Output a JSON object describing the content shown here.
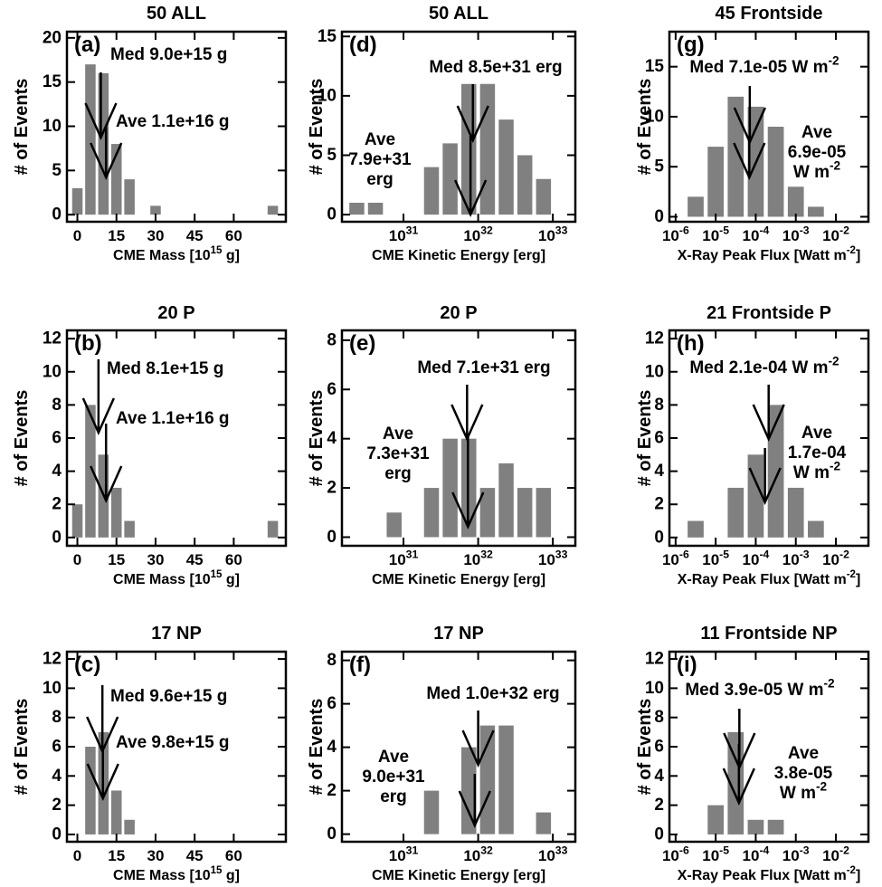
{
  "chart_data": [
    {
      "type": "histogram",
      "title": "50 ALL",
      "panel_label": "(a)",
      "ylabel": "# of Events",
      "xlabel": [
        {
          "text": "CME Mass [10"
        },
        {
          "text": "15",
          "sup": true
        },
        {
          "text": " g]"
        }
      ],
      "bins": [
        -2.5,
        2.5,
        7.5,
        12.5,
        17.5,
        22.5,
        27.5,
        32.5,
        37.5,
        42.5,
        47.5,
        52.5,
        57.5,
        62.5,
        67.5,
        72.5,
        77.5
      ],
      "values": [
        3,
        17,
        16,
        8,
        4,
        0,
        1,
        0,
        0,
        0,
        0,
        0,
        0,
        0,
        0,
        1
      ],
      "color": "#808080",
      "log_x": false,
      "xlim": [
        -4,
        80
      ],
      "xticks": [
        0,
        15,
        30,
        45,
        60
      ],
      "ylim": [
        -0.8,
        20.7
      ],
      "yticks": [
        0,
        5,
        10,
        15,
        20
      ],
      "annotations": [
        {
          "x": 9.0,
          "lines": [
            [
              {
                "text": "Med 9.0e+15 g"
              }
            ]
          ]
        },
        {
          "x": 11,
          "lines": [
            [
              {
                "text": "Ave 1.1e+16 g"
              }
            ]
          ]
        }
      ]
    },
    {
      "type": "histogram",
      "title": "20 P",
      "panel_label": "(b)",
      "ylabel": "# of Events",
      "xlabel": [
        {
          "text": "CME Mass [10"
        },
        {
          "text": "15",
          "sup": true
        },
        {
          "text": " g]"
        }
      ],
      "bins": [
        -2.5,
        2.5,
        7.5,
        12.5,
        17.5,
        22.5,
        27.5,
        32.5,
        37.5,
        42.5,
        47.5,
        52.5,
        57.5,
        62.5,
        67.5,
        72.5,
        77.5
      ],
      "values": [
        2,
        8,
        5,
        3,
        1,
        0,
        0,
        0,
        0,
        0,
        0,
        0,
        0,
        0,
        0,
        1
      ],
      "color": "#808080",
      "log_x": false,
      "xlim": [
        -4,
        80
      ],
      "xticks": [
        0,
        15,
        30,
        45,
        60
      ],
      "ylim": [
        -0.5,
        12.5
      ],
      "yticks": [
        0,
        2,
        4,
        6,
        8,
        10,
        12
      ],
      "annotations": [
        {
          "x": 8.1,
          "lines": [
            [
              {
                "text": "Med 8.1e+15 g"
              }
            ]
          ]
        },
        {
          "x": 11,
          "lines": [
            [
              {
                "text": "Ave 1.1e+16 g"
              }
            ]
          ]
        }
      ]
    },
    {
      "type": "histogram",
      "title": "17 NP",
      "panel_label": "(c)",
      "ylabel": "# of Events",
      "xlabel": [
        {
          "text": "CME Mass [10"
        },
        {
          "text": "15",
          "sup": true
        },
        {
          "text": " g]"
        }
      ],
      "bins": [
        -2.5,
        2.5,
        7.5,
        12.5,
        17.5,
        22.5,
        27.5,
        32.5,
        37.5,
        42.5,
        47.5,
        52.5,
        57.5,
        62.5,
        67.5,
        72.5,
        77.5
      ],
      "values": [
        0,
        6,
        7,
        3,
        1,
        0,
        0,
        0,
        0,
        0,
        0,
        0,
        0,
        0,
        0,
        0
      ],
      "color": "#808080",
      "log_x": false,
      "xlim": [
        -4,
        80
      ],
      "xticks": [
        0,
        15,
        30,
        45,
        60
      ],
      "ylim": [
        -0.5,
        12.5
      ],
      "yticks": [
        0,
        2,
        4,
        6,
        8,
        10,
        12
      ],
      "annotations": [
        {
          "x": 9.6,
          "lines": [
            [
              {
                "text": "Med 9.6e+15 g"
              }
            ]
          ]
        },
        {
          "x": 9.8,
          "lines": [
            [
              {
                "text": "Ave 9.8e+15 g"
              }
            ]
          ]
        }
      ]
    },
    {
      "type": "histogram",
      "title": "50 ALL",
      "panel_label": "(d)",
      "ylabel": "# of Events",
      "xlabel": [
        {
          "text": "CME Kinetic Energy [erg]"
        }
      ],
      "bins": [
        1.778e+30,
        3.162e+30,
        5.623e+30,
        1e+31,
        1.778e+31,
        3.162e+31,
        5.623e+31,
        1e+32,
        1.778e+32,
        3.162e+32,
        5.623e+32,
        1e+33
      ],
      "values": [
        1,
        1,
        0,
        0,
        4,
        6,
        11,
        11,
        8,
        5,
        3
      ],
      "color": "#808080",
      "log_x": true,
      "xlim": [
        1.5e+30,
        2e+33
      ],
      "xticks": [
        {
          "value": 1e+31,
          "label": [
            {
              "text": "10"
            },
            {
              "text": "31",
              "sup": true
            }
          ]
        },
        {
          "value": 1e+32,
          "label": [
            {
              "text": "10"
            },
            {
              "text": "32",
              "sup": true
            }
          ]
        },
        {
          "value": 1e+33,
          "label": [
            {
              "text": "10"
            },
            {
              "text": "33",
              "sup": true
            }
          ]
        }
      ],
      "ylim": [
        -0.6,
        15.4
      ],
      "yticks": [
        0,
        5,
        10,
        15
      ],
      "annotations": [
        {
          "x": 8.5e+31,
          "lines": [
            [
              {
                "text": "Med 8.5e+31 erg"
              }
            ]
          ]
        },
        {
          "x": 7.9e+31,
          "lines": [
            [
              {
                "text": "Ave"
              }
            ],
            [
              {
                "text": "7.9e+31"
              }
            ],
            [
              {
                "text": "erg"
              }
            ]
          ]
        }
      ]
    },
    {
      "type": "histogram",
      "title": "20 P",
      "panel_label": "(e)",
      "ylabel": "# of Events",
      "xlabel": [
        {
          "text": "CME Kinetic Energy [erg]"
        }
      ],
      "bins": [
        1.778e+30,
        3.162e+30,
        5.623e+30,
        1e+31,
        1.778e+31,
        3.162e+31,
        5.623e+31,
        1e+32,
        1.778e+32,
        3.162e+32,
        5.623e+32,
        1e+33
      ],
      "values": [
        0,
        0,
        1,
        0,
        2,
        4,
        4,
        2,
        3,
        2,
        2
      ],
      "color": "#808080",
      "log_x": true,
      "xlim": [
        1.5e+30,
        2e+33
      ],
      "xticks": [
        {
          "value": 1e+31,
          "label": [
            {
              "text": "10"
            },
            {
              "text": "31",
              "sup": true
            }
          ]
        },
        {
          "value": 1e+32,
          "label": [
            {
              "text": "10"
            },
            {
              "text": "32",
              "sup": true
            }
          ]
        },
        {
          "value": 1e+33,
          "label": [
            {
              "text": "10"
            },
            {
              "text": "33",
              "sup": true
            }
          ]
        }
      ],
      "ylim": [
        -0.35,
        8.4
      ],
      "yticks": [
        0,
        2,
        4,
        6,
        8
      ],
      "annotations": [
        {
          "x": 7.1e+31,
          "lines": [
            [
              {
                "text": "Med 7.1e+31 erg"
              }
            ]
          ]
        },
        {
          "x": 7.3e+31,
          "lines": [
            [
              {
                "text": "Ave"
              }
            ],
            [
              {
                "text": "7.3e+31"
              }
            ],
            [
              {
                "text": "erg"
              }
            ]
          ]
        }
      ]
    },
    {
      "type": "histogram",
      "title": "17 NP",
      "panel_label": "(f)",
      "ylabel": "# of Events",
      "xlabel": [
        {
          "text": "CME Kinetic Energy [erg]"
        }
      ],
      "bins": [
        1.778e+30,
        3.162e+30,
        5.623e+30,
        1e+31,
        1.778e+31,
        3.162e+31,
        5.623e+31,
        1e+32,
        1.778e+32,
        3.162e+32,
        5.623e+32,
        1e+33
      ],
      "values": [
        0,
        0,
        0,
        0,
        2,
        0,
        4,
        5,
        5,
        0,
        1
      ],
      "color": "#808080",
      "log_x": true,
      "xlim": [
        1.5e+30,
        2e+33
      ],
      "xticks": [
        {
          "value": 1e+31,
          "label": [
            {
              "text": "10"
            },
            {
              "text": "31",
              "sup": true
            }
          ]
        },
        {
          "value": 1e+32,
          "label": [
            {
              "text": "10"
            },
            {
              "text": "32",
              "sup": true
            }
          ]
        },
        {
          "value": 1e+33,
          "label": [
            {
              "text": "10"
            },
            {
              "text": "33",
              "sup": true
            }
          ]
        }
      ],
      "ylim": [
        -0.35,
        8.4
      ],
      "yticks": [
        0,
        2,
        4,
        6,
        8
      ],
      "annotations": [
        {
          "x": 1e+32,
          "lines": [
            [
              {
                "text": "Med 1.0e+32 erg"
              }
            ]
          ]
        },
        {
          "x": 9e+31,
          "lines": [
            [
              {
                "text": "Ave"
              }
            ],
            [
              {
                "text": "9.0e+31"
              }
            ],
            [
              {
                "text": "erg"
              }
            ]
          ]
        }
      ]
    },
    {
      "type": "histogram",
      "title": "45 Frontside",
      "panel_label": "(g)",
      "ylabel": "# of Events",
      "xlabel": [
        {
          "text": "X-Ray Peak Flux [Watt m"
        },
        {
          "text": "-2",
          "sup": true
        },
        {
          "text": "]"
        }
      ],
      "bins": [
        1.778e-06,
        5.623e-06,
        1.778e-05,
        5.623e-05,
        0.0001778,
        0.0005623,
        0.001778,
        0.005623
      ],
      "values": [
        2,
        7,
        12,
        11,
        9,
        3,
        1
      ],
      "color": "#808080",
      "log_x": true,
      "xlim": [
        7e-07,
        0.065
      ],
      "xticks": [
        {
          "value": 1e-06,
          "label": [
            {
              "text": "10"
            },
            {
              "text": "-6",
              "sup": true
            }
          ]
        },
        {
          "value": 1e-05,
          "label": [
            {
              "text": "10"
            },
            {
              "text": "-5",
              "sup": true
            }
          ]
        },
        {
          "value": 0.0001,
          "label": [
            {
              "text": "10"
            },
            {
              "text": "-4",
              "sup": true
            }
          ]
        },
        {
          "value": 0.001,
          "label": [
            {
              "text": "10"
            },
            {
              "text": "-3",
              "sup": true
            }
          ]
        },
        {
          "value": 0.01,
          "label": [
            {
              "text": "10"
            },
            {
              "text": "-2",
              "sup": true
            }
          ]
        }
      ],
      "ylim": [
        -0.5,
        18.5
      ],
      "yticks": [
        0,
        5,
        10,
        15
      ],
      "annotations": [
        {
          "x": 7.1e-05,
          "lines": [
            [
              {
                "text": "Med 7.1e-05 W m"
              },
              {
                "text": "-2",
                "sup": true
              }
            ]
          ]
        },
        {
          "x": 6.9e-05,
          "lines": [
            [
              {
                "text": "Ave"
              }
            ],
            [
              {
                "text": "6.9e-05"
              }
            ],
            [
              {
                "text": "W m"
              },
              {
                "text": "-2",
                "sup": true
              }
            ]
          ]
        }
      ]
    },
    {
      "type": "histogram",
      "title": "21 Frontside P",
      "panel_label": "(h)",
      "ylabel": "# of Events",
      "xlabel": [
        {
          "text": "X-Ray Peak Flux [Watt m"
        },
        {
          "text": "-2",
          "sup": true
        },
        {
          "text": "]"
        }
      ],
      "bins": [
        1.778e-06,
        5.623e-06,
        1.778e-05,
        5.623e-05,
        0.0001778,
        0.0005623,
        0.001778,
        0.005623
      ],
      "values": [
        1,
        0,
        3,
        5,
        8,
        3,
        1
      ],
      "color": "#808080",
      "log_x": true,
      "xlim": [
        7e-07,
        0.065
      ],
      "xticks": [
        {
          "value": 1e-06,
          "label": [
            {
              "text": "10"
            },
            {
              "text": "-6",
              "sup": true
            }
          ]
        },
        {
          "value": 1e-05,
          "label": [
            {
              "text": "10"
            },
            {
              "text": "-5",
              "sup": true
            }
          ]
        },
        {
          "value": 0.0001,
          "label": [
            {
              "text": "10"
            },
            {
              "text": "-4",
              "sup": true
            }
          ]
        },
        {
          "value": 0.001,
          "label": [
            {
              "text": "10"
            },
            {
              "text": "-3",
              "sup": true
            }
          ]
        },
        {
          "value": 0.01,
          "label": [
            {
              "text": "10"
            },
            {
              "text": "-2",
              "sup": true
            }
          ]
        }
      ],
      "ylim": [
        -0.5,
        12.5
      ],
      "yticks": [
        0,
        2,
        4,
        6,
        8,
        10,
        12
      ],
      "annotations": [
        {
          "x": 0.00021,
          "lines": [
            [
              {
                "text": "Med 2.1e-04 W m"
              },
              {
                "text": "-2",
                "sup": true
              }
            ]
          ]
        },
        {
          "x": 0.00017,
          "lines": [
            [
              {
                "text": "Ave"
              }
            ],
            [
              {
                "text": "1.7e-04"
              }
            ],
            [
              {
                "text": "W m"
              },
              {
                "text": "-2",
                "sup": true
              }
            ]
          ]
        }
      ]
    },
    {
      "type": "histogram",
      "title": "11 Frontside NP",
      "panel_label": "(i)",
      "ylabel": "# of Events",
      "xlabel": [
        {
          "text": "X-Ray Peak Flux [Watt m"
        },
        {
          "text": "-2",
          "sup": true
        },
        {
          "text": "]"
        }
      ],
      "bins": [
        1.778e-06,
        5.623e-06,
        1.778e-05,
        5.623e-05,
        0.0001778,
        0.0005623,
        0.001778,
        0.005623
      ],
      "values": [
        0,
        2,
        7,
        1,
        1,
        0,
        0
      ],
      "color": "#808080",
      "log_x": true,
      "xlim": [
        7e-07,
        0.065
      ],
      "xticks": [
        {
          "value": 1e-06,
          "label": [
            {
              "text": "10"
            },
            {
              "text": "-6",
              "sup": true
            }
          ]
        },
        {
          "value": 1e-05,
          "label": [
            {
              "text": "10"
            },
            {
              "text": "-5",
              "sup": true
            }
          ]
        },
        {
          "value": 0.0001,
          "label": [
            {
              "text": "10"
            },
            {
              "text": "-4",
              "sup": true
            }
          ]
        },
        {
          "value": 0.001,
          "label": [
            {
              "text": "10"
            },
            {
              "text": "-3",
              "sup": true
            }
          ]
        },
        {
          "value": 0.01,
          "label": [
            {
              "text": "10"
            },
            {
              "text": "-2",
              "sup": true
            }
          ]
        }
      ],
      "ylim": [
        -0.5,
        12.5
      ],
      "yticks": [
        0,
        2,
        4,
        6,
        8,
        10,
        12
      ],
      "annotations": [
        {
          "x": 3.9e-05,
          "lines": [
            [
              {
                "text": "Med 3.9e-05 W m"
              },
              {
                "text": "-2",
                "sup": true
              }
            ]
          ]
        },
        {
          "x": 3.8e-05,
          "lines": [
            [
              {
                "text": "Ave"
              }
            ],
            [
              {
                "text": "3.8e-05"
              }
            ],
            [
              {
                "text": "W m"
              },
              {
                "text": "-2",
                "sup": true
              }
            ]
          ]
        }
      ]
    }
  ]
}
